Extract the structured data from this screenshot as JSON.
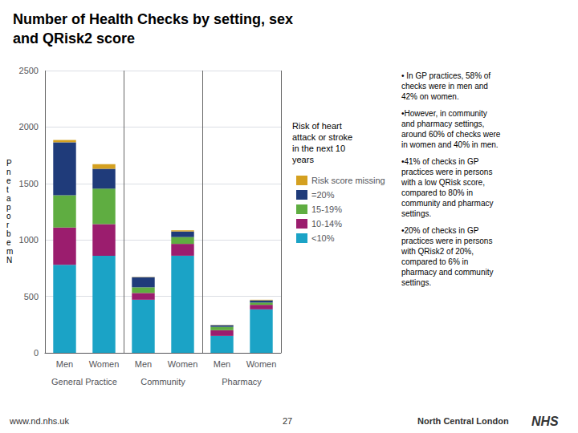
{
  "chart_data": {
    "type": "bar",
    "title": "Number of Health Checks by setting, sex\nand QRisk2 score",
    "ylabel": "P\nn\ne\nt\na\np\no\nr\nb\ne\nm\nN",
    "categories": [
      "Men",
      "Women",
      "Men",
      "Women",
      "Men",
      "Women"
    ],
    "group_labels": [
      "General Practice",
      "Community",
      "Pharmacy"
    ],
    "series": [
      {
        "name": "<10%",
        "color": "#1BA3C6",
        "values": [
          780,
          860,
          470,
          860,
          150,
          385
        ]
      },
      {
        "name": "10-14%",
        "color": "#9B1D6E",
        "values": [
          330,
          280,
          60,
          105,
          50,
          40
        ]
      },
      {
        "name": "15-19%",
        "color": "#5FAD41",
        "values": [
          285,
          315,
          50,
          60,
          30,
          20
        ]
      },
      {
        "name": "=20%",
        "color": "#1F3B7A",
        "values": [
          470,
          175,
          90,
          50,
          15,
          20
        ]
      },
      {
        "name": "Risk score missing",
        "color": "#D4A020",
        "values": [
          20,
          40,
          2,
          10,
          2,
          5
        ]
      }
    ],
    "stacked": true,
    "ylim": [
      0,
      2500
    ],
    "yticks": [
      0,
      500,
      1000,
      1500,
      2000,
      2500
    ],
    "grid": true,
    "legend": "right",
    "legend_title": "Risk of heart\nattack or stroke\nin the next 10\nyears",
    "annotations": [
      "• In GP practices, 58% of\nchecks were in men and\n42% on women.",
      "•However, in community\nand pharmacy settings,\naround 60% of checks were\nin women and 40% in men.",
      "•41% of checks in GP\npractices were in persons\nwith a low QRisk score,\ncompared to 80% in\ncommunity and pharmacy\nsettings.",
      "•20% of checks in GP\npractices were in persons\nwith QRisk2 of 20%,\ncompared to 6% in\npharmacy and community\nsettings."
    ],
    "footer": [
      "www.nd.nhs.uk",
      "27",
      "North Central London"
    ],
    "logo": "NHS"
  }
}
